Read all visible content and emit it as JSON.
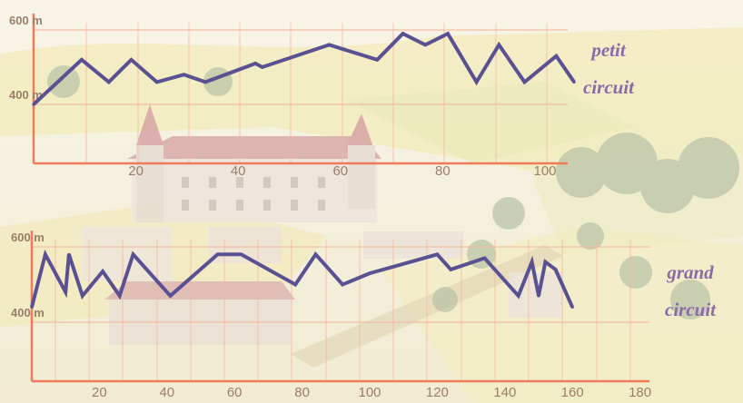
{
  "chart_data": [
    {
      "type": "line",
      "title": "petit circuit",
      "title_lines": [
        "petit",
        "circuit"
      ],
      "y_tick_labels": [
        "600 m",
        "400 m"
      ],
      "y_ticks": [
        600,
        400
      ],
      "ylim": [
        400,
        600
      ],
      "xlim": [
        0,
        110
      ],
      "x_tick_labels": [
        "20",
        "40",
        "60",
        "80",
        "100"
      ],
      "x_ticks": [
        20,
        40,
        60,
        80,
        100
      ],
      "grid": true,
      "x": [
        0,
        9.4,
        14.7,
        19.1,
        24.1,
        29.4,
        33.6,
        43.4,
        44.7,
        57.8,
        67.2,
        72.2,
        76.6,
        81.0,
        86.6,
        91.0,
        96.0,
        102.2,
        105.7
      ],
      "values": [
        400,
        520,
        460,
        520,
        460,
        480,
        460,
        510,
        500,
        560,
        520,
        590,
        560,
        590,
        460,
        560,
        460,
        530,
        460
      ]
    },
    {
      "type": "line",
      "title": "grand circuit",
      "title_lines": [
        "grand",
        "circuit"
      ],
      "y_tick_labels": [
        "600 m",
        "400 m"
      ],
      "y_ticks": [
        600,
        400
      ],
      "ylim": [
        400,
        600
      ],
      "xlim": [
        0,
        185
      ],
      "x_tick_labels": [
        "20",
        "40",
        "60",
        "80",
        "100",
        "120",
        "140",
        "160",
        "180"
      ],
      "x_ticks": [
        20,
        40,
        60,
        80,
        100,
        120,
        140,
        160,
        180
      ],
      "grid": true,
      "x": [
        0,
        4,
        10,
        11,
        15,
        21,
        26,
        30,
        41,
        55,
        62,
        78,
        84,
        92,
        100,
        108,
        120,
        124,
        134,
        144,
        148,
        150,
        152,
        155,
        160
      ],
      "values": [
        440,
        580,
        480,
        580,
        470,
        535,
        470,
        580,
        470,
        580,
        580,
        500,
        580,
        500,
        530,
        550,
        580,
        540,
        570,
        470,
        560,
        470,
        560,
        540,
        440
      ]
    }
  ],
  "colors": {
    "axis": "#f07a5c",
    "gridline": "#f4b8a0",
    "series_line": "#5a5192",
    "annotation_text": "#8a6ba8",
    "tick_label": "#9b7e6a"
  },
  "background": {
    "description_icon": "chateau-aerial-photo"
  }
}
